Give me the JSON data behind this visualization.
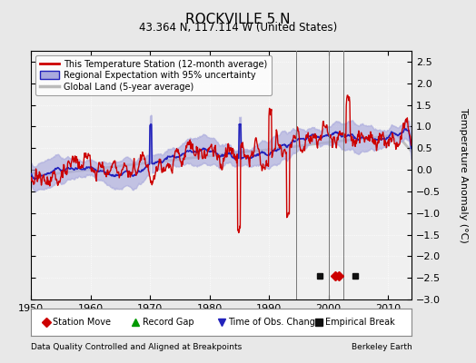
{
  "title": "ROCKVILLE 5 N",
  "subtitle": "43.364 N, 117.114 W (United States)",
  "ylabel": "Temperature Anomaly (°C)",
  "xlabel_note": "Data Quality Controlled and Aligned at Breakpoints",
  "credit": "Berkeley Earth",
  "xlim": [
    1950,
    2014
  ],
  "ylim": [
    -3,
    2.75
  ],
  "yticks": [
    -3,
    -2.5,
    -2,
    -1.5,
    -1,
    -0.5,
    0,
    0.5,
    1,
    1.5,
    2,
    2.5
  ],
  "xticks": [
    1950,
    1960,
    1970,
    1980,
    1990,
    2000,
    2010
  ],
  "bg_color": "#e8e8e8",
  "plot_bg": "#f0f0f0",
  "station_color": "#cc0000",
  "regional_color": "#2222bb",
  "regional_fill": "#aaaadd",
  "global_color": "#bbbbbb",
  "legend_entries": [
    "This Temperature Station (12-month average)",
    "Regional Expectation with 95% uncertainty",
    "Global Land (5-year average)"
  ],
  "marker_events": {
    "empirical_breaks": [
      1998.5,
      2004.5
    ],
    "station_moves": [
      2001.2,
      2001.8
    ],
    "time_obs_change_lines": [
      1994.5,
      2000.0,
      2002.5
    ],
    "record_gaps": []
  },
  "seed": 42
}
